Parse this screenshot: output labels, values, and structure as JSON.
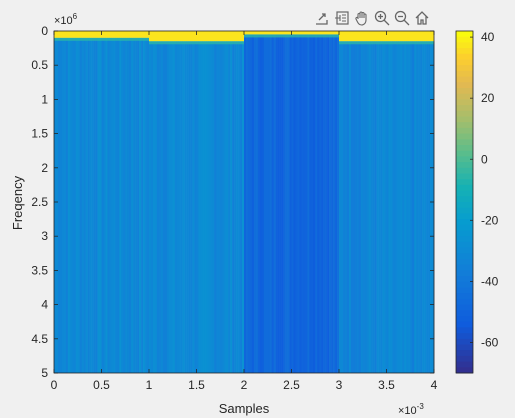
{
  "chart_data": {
    "type": "heatmap",
    "xlabel": "Samples",
    "ylabel": "Freqency",
    "x_exponent_label": "×10",
    "x_exponent": "-3",
    "y_exponent_label": "×10",
    "y_exponent": "6",
    "xlim": [
      0,
      0.004
    ],
    "ylim": [
      0,
      5000000
    ],
    "y_reversed": true,
    "x_ticks": [
      0,
      0.0005,
      0.001,
      0.0015,
      0.002,
      0.0025,
      0.003,
      0.0035,
      0.004
    ],
    "x_tick_labels": [
      "0",
      "0.5",
      "1",
      "1.5",
      "2",
      "2.5",
      "3",
      "3.5",
      "4"
    ],
    "y_ticks": [
      0,
      500000,
      1000000,
      1500000,
      2000000,
      2500000,
      3000000,
      3500000,
      4000000,
      4500000,
      5000000
    ],
    "y_tick_labels": [
      "0",
      "0.5",
      "1",
      "1.5",
      "2",
      "2.5",
      "3",
      "3.5",
      "4",
      "4.5",
      "5"
    ],
    "colormap": "parula",
    "clim": [
      -70,
      42
    ],
    "colorbar_ticks": [
      40,
      20,
      0,
      -20,
      -40,
      -60
    ],
    "colorbar_tick_labels": [
      "40",
      "20",
      "0",
      "-20",
      "-40",
      "-60"
    ],
    "segments": [
      {
        "x_start": 0,
        "x_end": 0.001,
        "band_top_freq": 100000,
        "band_value": 38,
        "bg_value": -30
      },
      {
        "x_start": 0.001,
        "x_end": 0.002,
        "band_top_freq": 150000,
        "band_value": 38,
        "bg_value": -30
      },
      {
        "x_start": 0.002,
        "x_end": 0.003,
        "band_top_freq": 50000,
        "band_value": 38,
        "bg_value": -47
      },
      {
        "x_start": 0.003,
        "x_end": 0.004,
        "band_top_freq": 150000,
        "band_value": 38,
        "bg_value": -32
      }
    ],
    "grid": false
  },
  "toolbar": {
    "icons": [
      "export-icon",
      "data-tips-icon",
      "pan-hand-icon",
      "zoom-in-icon",
      "zoom-out-icon",
      "home-icon"
    ]
  },
  "colors": {
    "figure_bg": "#f0f0f0",
    "axes_color": "#262626"
  }
}
